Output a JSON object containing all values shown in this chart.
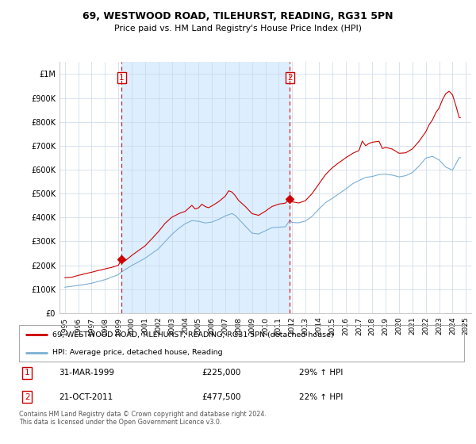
{
  "title": "69, WESTWOOD ROAD, TILEHURST, READING, RG31 5PN",
  "subtitle": "Price paid vs. HM Land Registry's House Price Index (HPI)",
  "legend_line1": "69, WESTWOOD ROAD, TILEHURST, READING, RG31 5PN (detached house)",
  "legend_line2": "HPI: Average price, detached house, Reading",
  "footnote": "Contains HM Land Registry data © Crown copyright and database right 2024.\nThis data is licensed under the Open Government Licence v3.0.",
  "transaction1_date": "31-MAR-1999",
  "transaction1_price": "£225,000",
  "transaction1_hpi": "29% ↑ HPI",
  "transaction2_date": "21-OCT-2011",
  "transaction2_price": "£477,500",
  "transaction2_hpi": "22% ↑ HPI",
  "sale_color": "#cc0000",
  "hpi_color": "#7bafd4",
  "shade_color": "#ddeeff",
  "marker1_x": 1999.25,
  "marker1_y": 225000,
  "marker2_x": 2011.83,
  "marker2_y": 477500,
  "ylim": [
    0,
    1050000
  ],
  "xlim_start": 1994.6,
  "xlim_end": 2025.4,
  "yticks": [
    0,
    100000,
    200000,
    300000,
    400000,
    500000,
    600000,
    700000,
    800000,
    900000,
    1000000
  ],
  "ytick_labels": [
    "£0",
    "£100K",
    "£200K",
    "£300K",
    "£400K",
    "£500K",
    "£600K",
    "£700K",
    "£800K",
    "£900K",
    "£1M"
  ],
  "xtick_years": [
    1995,
    1996,
    1997,
    1998,
    1999,
    2000,
    2001,
    2002,
    2003,
    2004,
    2005,
    2006,
    2007,
    2008,
    2009,
    2010,
    2011,
    2012,
    2013,
    2014,
    2015,
    2016,
    2017,
    2018,
    2019,
    2020,
    2021,
    2022,
    2023,
    2024,
    2025
  ]
}
